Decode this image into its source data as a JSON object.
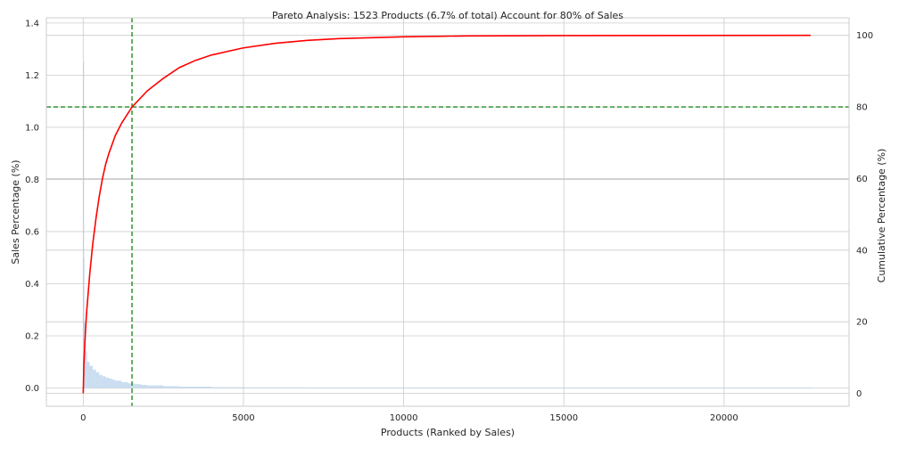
{
  "chart_data": {
    "type": "bar+line",
    "title": "Pareto Analysis: 1523 Products (6.7% of total) Account for 80% of Sales",
    "xlabel": "Products (Ranked by Sales)",
    "ylabel_left": "Sales Percentage (%)",
    "ylabel_right": "Cumulative Percentage (%)",
    "xlim": [
      -1150,
      23900
    ],
    "ylim_left": [
      -0.07,
      1.42
    ],
    "ylim_right": [
      -3.6,
      104.9
    ],
    "x_ticks": [
      0,
      5000,
      10000,
      15000,
      20000
    ],
    "x_tick_labels": [
      "0",
      "5000",
      "10000",
      "15000",
      "20000"
    ],
    "y_left_ticks": [
      0,
      0.2,
      0.4,
      0.6,
      0.8,
      1.0,
      1.2,
      1.4
    ],
    "y_left_tick_labels": [
      "0.0",
      "0.2",
      "0.4",
      "0.6",
      "0.8",
      "1.0",
      "1.2",
      "1.4"
    ],
    "y_right_ticks": [
      0,
      20,
      40,
      60,
      80,
      100
    ],
    "y_right_tick_labels": [
      "0",
      "20",
      "40",
      "60",
      "80",
      "100"
    ],
    "grid": true,
    "total_products": 22700,
    "cutoff_product_count": 1523,
    "cutoff_percent_of_products": 6.7,
    "cutoff_cumulative_percent": 80,
    "series": [
      {
        "kind": "bar",
        "axis": "left",
        "color": "#a9c8e8",
        "description_x_y": "Sales percentage per ranked product (descending)",
        "points": [
          [
            0,
            1.25
          ],
          [
            5,
            0.5
          ],
          [
            20,
            0.25
          ],
          [
            60,
            0.14
          ],
          [
            120,
            0.1
          ],
          [
            200,
            0.085
          ],
          [
            300,
            0.07
          ],
          [
            400,
            0.06
          ],
          [
            500,
            0.05
          ],
          [
            600,
            0.045
          ],
          [
            700,
            0.04
          ],
          [
            800,
            0.036
          ],
          [
            900,
            0.032
          ],
          [
            1000,
            0.028
          ],
          [
            1200,
            0.022
          ],
          [
            1400,
            0.018
          ],
          [
            1600,
            0.015
          ],
          [
            1800,
            0.012
          ],
          [
            2000,
            0.01
          ],
          [
            2500,
            0.007
          ],
          [
            3000,
            0.005
          ],
          [
            4000,
            0.003
          ],
          [
            5000,
            0.002
          ],
          [
            7000,
            0.001
          ],
          [
            10000,
            0.0005
          ],
          [
            15000,
            0.0002
          ],
          [
            22700,
            0.0001
          ]
        ]
      },
      {
        "kind": "line",
        "axis": "right",
        "color": "#ff0000",
        "points": [
          [
            0,
            0
          ],
          [
            20,
            8
          ],
          [
            50,
            14
          ],
          [
            100,
            22
          ],
          [
            200,
            33
          ],
          [
            300,
            42
          ],
          [
            400,
            49
          ],
          [
            500,
            55
          ],
          [
            600,
            60
          ],
          [
            700,
            64
          ],
          [
            800,
            67
          ],
          [
            1000,
            72
          ],
          [
            1200,
            75.5
          ],
          [
            1523,
            80
          ],
          [
            2000,
            84.5
          ],
          [
            2500,
            88
          ],
          [
            3000,
            91
          ],
          [
            3500,
            93
          ],
          [
            4000,
            94.5
          ],
          [
            5000,
            96.5
          ],
          [
            6000,
            97.8
          ],
          [
            7000,
            98.6
          ],
          [
            8000,
            99.1
          ],
          [
            10000,
            99.6
          ],
          [
            12000,
            99.85
          ],
          [
            15000,
            99.95
          ],
          [
            22700,
            100
          ]
        ]
      }
    ],
    "reference_lines": [
      {
        "orientation": "vertical",
        "x": 1523,
        "color": "#228b22",
        "style": "dashed"
      },
      {
        "orientation": "horizontal",
        "axis": "right",
        "y": 80,
        "color": "#228b22",
        "style": "dashed"
      }
    ]
  }
}
